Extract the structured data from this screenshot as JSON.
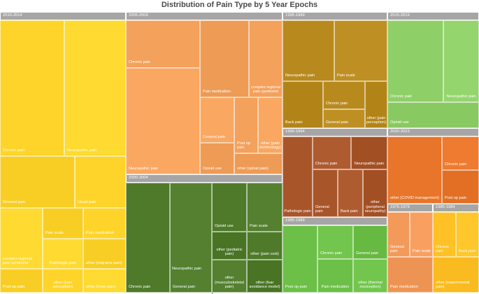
{
  "chart_data": {
    "type": "treemap",
    "title": "Distribution of Pain Type by 5 Year Epochs",
    "groups": [
      {
        "epoch": "2010-2014",
        "color": "#ffd42a",
        "items": [
          {
            "label": "Chronic pain",
            "value": 168
          },
          {
            "label": "Neuropathic pain",
            "value": 89
          },
          {
            "label": "General pain",
            "value": 78
          },
          {
            "label": "Usual pain",
            "value": 52
          },
          {
            "label": "complex regional pain syndrome",
            "value": 59
          },
          {
            "label": "Pain scale",
            "value": 30
          },
          {
            "label": "Pain medication",
            "value": 30
          },
          {
            "label": "Pathologic pain",
            "value": 30
          },
          {
            "label": "other (migraine pain)",
            "value": 30
          },
          {
            "label": "other (pain perception)",
            "value": 21
          },
          {
            "label": "other (knee pain)",
            "value": 21
          },
          {
            "label": "Post op pain",
            "value": 21
          }
        ]
      },
      {
        "epoch": "2005-2009",
        "color": "#f4a15c",
        "items": [
          {
            "label": "Chronic pain",
            "value": 85
          },
          {
            "label": "Neuropathic pain",
            "value": 72
          },
          {
            "label": "Pain medication",
            "value": 45
          },
          {
            "label": "complex regional pain syndrome",
            "value": 33
          },
          {
            "label": "General pain",
            "value": 25
          },
          {
            "label": "Opioid use",
            "value": 25
          },
          {
            "label": "Post op pain",
            "value": 16
          },
          {
            "label": "other (pain terminology)",
            "value": 16
          },
          {
            "label": "other (spinal pain)",
            "value": 28
          }
        ]
      },
      {
        "epoch": "2000-2004",
        "color": "#4e7a2a",
        "items": [
          {
            "label": "Chronic pain",
            "value": 51
          },
          {
            "label": "General pain",
            "value": 51
          },
          {
            "label": "Neuropathic pain",
            "value": 33
          },
          {
            "label": "Opioid use",
            "value": 14
          },
          {
            "label": "Pain scale",
            "value": 14
          },
          {
            "label": "other (pediatric pain)",
            "value": 22
          },
          {
            "label": "other (pain cost)",
            "value": 22
          },
          {
            "label": "other (musculoskeletal pain)",
            "value": 23
          },
          {
            "label": "other (fear avoidance model)",
            "value": 23
          }
        ]
      },
      {
        "epoch": "1995-1999",
        "color": "#b88a1e",
        "items": [
          {
            "label": "Neuropathic pain",
            "value": 27
          },
          {
            "label": "Pain scale",
            "value": 21
          },
          {
            "label": "Back pain",
            "value": 24
          },
          {
            "label": "Chronic pain",
            "value": 15
          },
          {
            "label": "General pain",
            "value": 15
          },
          {
            "label": "other (pain perception)",
            "value": 18
          }
        ]
      },
      {
        "epoch": "1990-1994",
        "color": "#a9552a",
        "items": [
          {
            "label": "Pathologic pain",
            "value": 22
          },
          {
            "label": "Chronic pain",
            "value": 12
          },
          {
            "label": "Neuropathic pain",
            "value": 12
          },
          {
            "label": "General pain",
            "value": 10
          },
          {
            "label": "Back pain",
            "value": 10
          },
          {
            "label": "other (peripheral neuropathy)",
            "value": 10
          }
        ]
      },
      {
        "epoch": "1985-1989",
        "color": "#6cbf47",
        "items": [
          {
            "label": "Post op pain",
            "value": 18
          },
          {
            "label": "Chronic pain",
            "value": 13
          },
          {
            "label": "General pain",
            "value": 13
          },
          {
            "label": "Pain medication",
            "value": 12
          },
          {
            "label": "other (thermal nociception)",
            "value": 12
          }
        ]
      },
      {
        "epoch": "2015-2019",
        "color": "#8fcf67",
        "items": [
          {
            "label": "Chronic pain",
            "value": 36
          },
          {
            "label": "Neuropathic pain",
            "value": 17
          },
          {
            "label": "Opioid use",
            "value": 15
          }
        ]
      },
      {
        "epoch": "2020-2023",
        "color": "#e8752a",
        "items": [
          {
            "label": "other (COVID management)",
            "value": 27
          },
          {
            "label": "Chronic pain",
            "value": 12
          },
          {
            "label": "Post op pain",
            "value": 12
          }
        ]
      },
      {
        "epoch": "1975-1979",
        "color": "#f39a5a",
        "items": [
          {
            "label": "General pain",
            "value": 7
          },
          {
            "label": "Pain scale",
            "value": 7
          },
          {
            "label": "Pain medication",
            "value": 8
          }
        ]
      },
      {
        "epoch": "1980-1984",
        "color": "#ffc125",
        "items": [
          {
            "label": "Chronic pain",
            "value": 7
          },
          {
            "label": "Back pain",
            "value": 7
          },
          {
            "label": "other (experimental pain)",
            "value": 7
          }
        ]
      }
    ]
  }
}
